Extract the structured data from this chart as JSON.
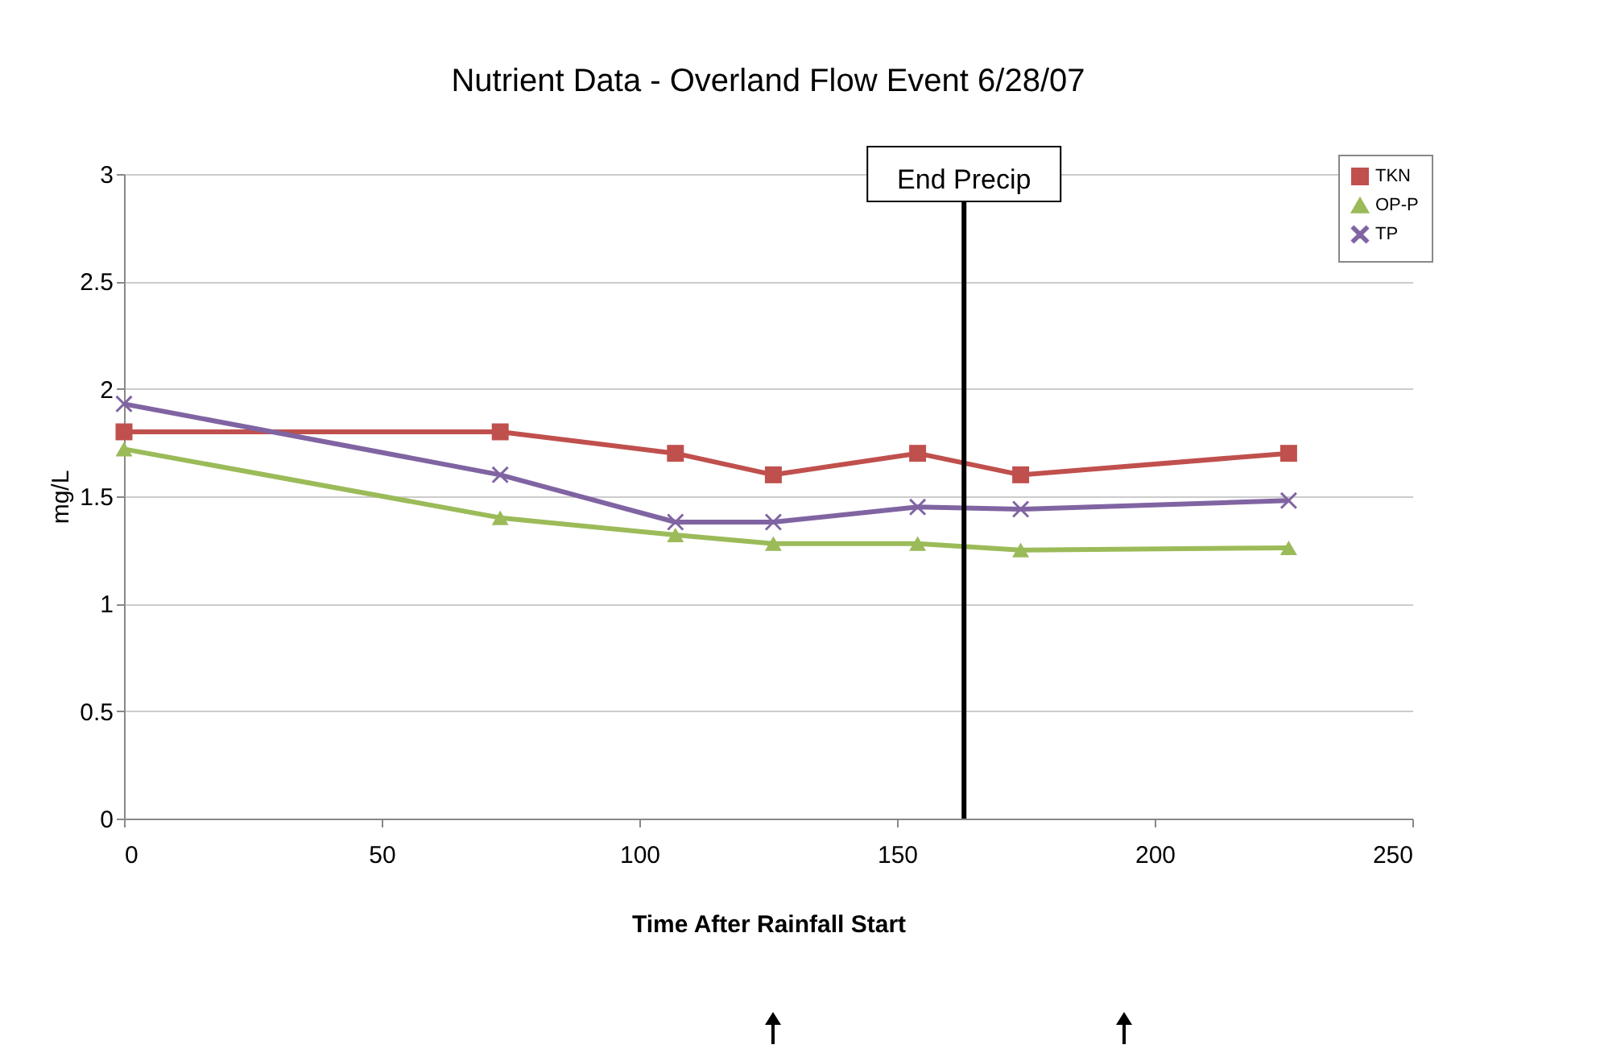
{
  "chart_data": {
    "type": "line",
    "title": "Nutrient Data - Overland Flow Event 6/28/07",
    "xlabel": "Time After Rainfall Start",
    "ylabel": "mg/L",
    "x": [
      0,
      73,
      107,
      126,
      154,
      174,
      226
    ],
    "series": [
      {
        "name": "TKN",
        "color": "#c0504d",
        "marker": "square",
        "values": [
          1.8,
          1.8,
          1.7,
          1.6,
          1.7,
          1.6,
          1.7
        ]
      },
      {
        "name": "OP-P",
        "color": "#9bbb59",
        "marker": "triangle",
        "values": [
          1.72,
          1.4,
          1.32,
          1.28,
          1.28,
          1.25,
          1.26
        ]
      },
      {
        "name": "TP",
        "color": "#8064a2",
        "marker": "cross",
        "values": [
          1.93,
          1.6,
          1.38,
          1.38,
          1.45,
          1.44,
          1.48
        ]
      }
    ],
    "xlim": [
      0,
      250
    ],
    "xticks": [
      0,
      50,
      100,
      150,
      200,
      250
    ],
    "ylim": [
      0,
      3
    ],
    "yticks": [
      0,
      0.5,
      1,
      1.5,
      2,
      2.5,
      3
    ],
    "grid": "y",
    "legend": "top right",
    "line_style": "solid",
    "ref_lines": [
      {
        "axis": "x",
        "value": 163,
        "label": "End Precip",
        "color": "#000000"
      }
    ]
  }
}
